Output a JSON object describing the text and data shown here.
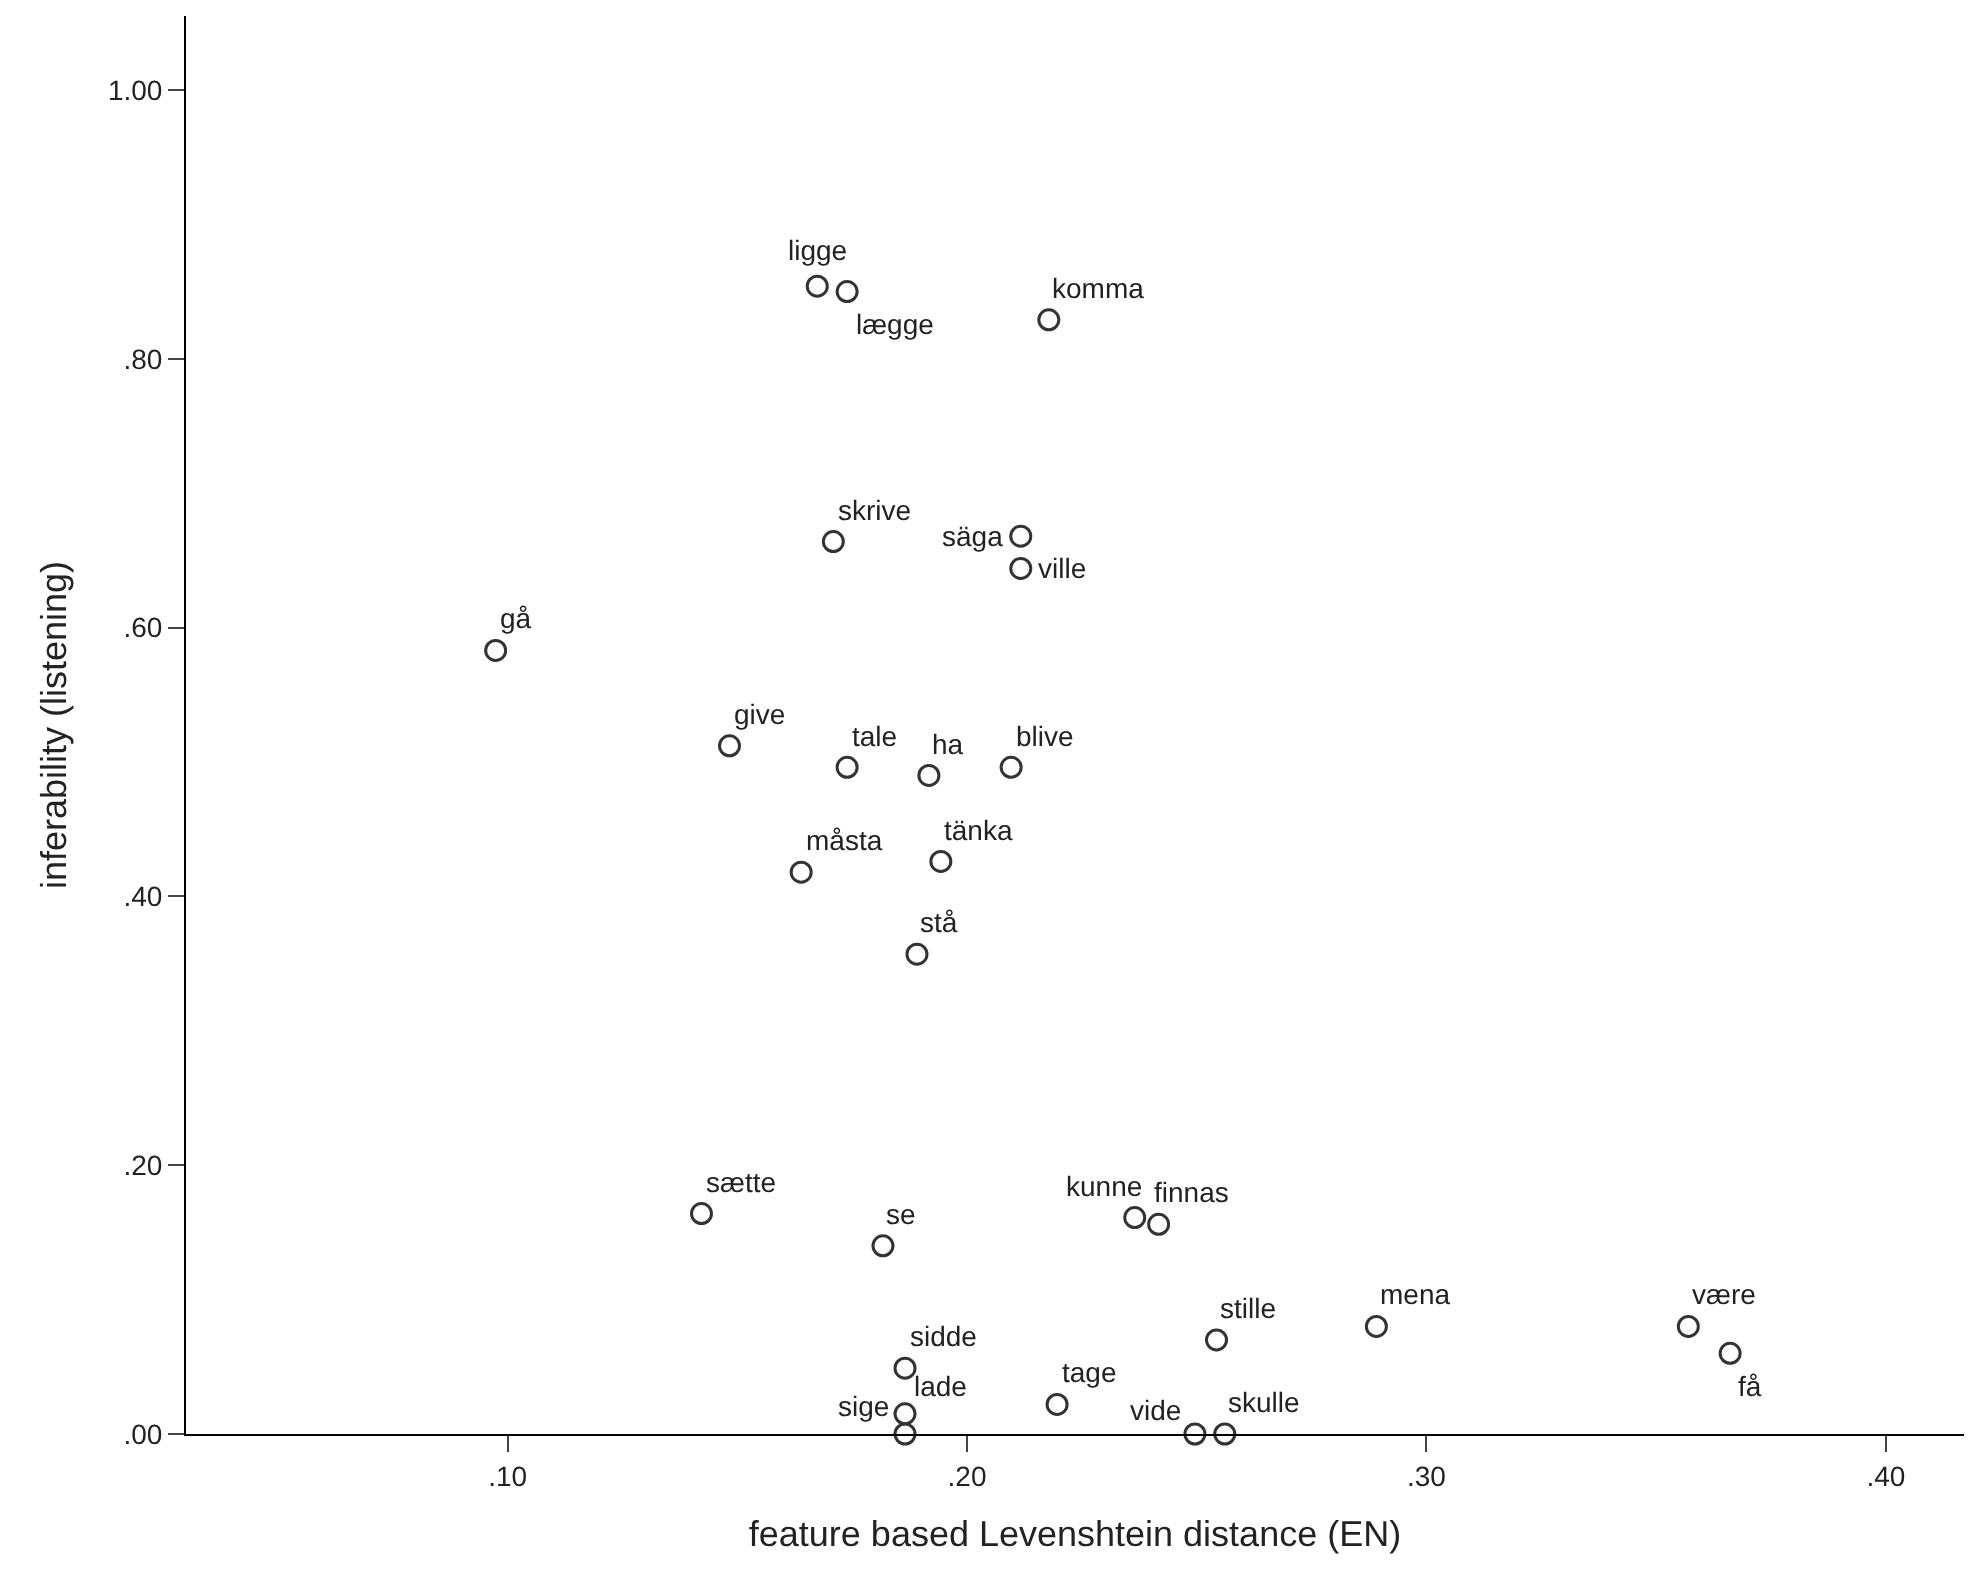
{
  "chart_data": {
    "type": "scatter",
    "xlabel": "feature based Levenshtein distance (EN)",
    "ylabel": "inferability (listening)",
    "x": [
      0.1674,
      0.1739,
      0.2178,
      0.1709,
      0.2117,
      0.2117,
      0.0974,
      0.1483,
      0.1739,
      0.1917,
      0.2096,
      0.1639,
      0.1943,
      0.1891,
      0.1422,
      0.1817,
      0.2365,
      0.2417,
      0.2543,
      0.2891,
      0.357,
      0.3661,
      0.1865,
      0.1865,
      0.1865,
      0.2196,
      0.2496,
      0.2561
    ],
    "series": [
      {
        "color": "#333333",
        "values": [
          0.854,
          0.85,
          0.829,
          0.664,
          0.668,
          0.644,
          0.583,
          0.512,
          0.496,
          0.49,
          0.496,
          0.418,
          0.426,
          0.357,
          0.164,
          0.14,
          0.161,
          0.156,
          0.07,
          0.08,
          0.08,
          0.06,
          0.049,
          0.015,
          0.0,
          0.022,
          0.0,
          0.0
        ]
      }
    ],
    "annotations": [
      {
        "text": "ligge",
        "x": 0.1674,
        "y": 0.854
      },
      {
        "text": "lægge",
        "x": 0.1739,
        "y": 0.85
      },
      {
        "text": "komma",
        "x": 0.2178,
        "y": 0.829
      },
      {
        "text": "skrive",
        "x": 0.1709,
        "y": 0.664
      },
      {
        "text": "säga",
        "x": 0.2117,
        "y": 0.668
      },
      {
        "text": "ville",
        "x": 0.2117,
        "y": 0.644
      },
      {
        "text": "gå",
        "x": 0.0974,
        "y": 0.583
      },
      {
        "text": "give",
        "x": 0.1483,
        "y": 0.512
      },
      {
        "text": "tale",
        "x": 0.1739,
        "y": 0.496
      },
      {
        "text": "ha",
        "x": 0.1917,
        "y": 0.49
      },
      {
        "text": "blive",
        "x": 0.2096,
        "y": 0.496
      },
      {
        "text": "måsta",
        "x": 0.1639,
        "y": 0.418
      },
      {
        "text": "tänka",
        "x": 0.1943,
        "y": 0.426
      },
      {
        "text": "stå",
        "x": 0.1891,
        "y": 0.357
      },
      {
        "text": "sætte",
        "x": 0.1422,
        "y": 0.164
      },
      {
        "text": "se",
        "x": 0.1817,
        "y": 0.14
      },
      {
        "text": "kunne",
        "x": 0.2365,
        "y": 0.161
      },
      {
        "text": "finnas",
        "x": 0.2417,
        "y": 0.156
      },
      {
        "text": "stille",
        "x": 0.2543,
        "y": 0.07
      },
      {
        "text": "mena",
        "x": 0.2891,
        "y": 0.08
      },
      {
        "text": "være",
        "x": 0.357,
        "y": 0.08
      },
      {
        "text": "få",
        "x": 0.3661,
        "y": 0.06
      },
      {
        "text": "sidde",
        "x": 0.1865,
        "y": 0.049
      },
      {
        "text": "sige",
        "x": 0.1865,
        "y": 0.015
      },
      {
        "text": "lade",
        "x": 0.1865,
        "y": 0.0
      },
      {
        "text": "tage",
        "x": 0.2196,
        "y": 0.022
      },
      {
        "text": "vide",
        "x": 0.2496,
        "y": 0.0
      },
      {
        "text": "skulle",
        "x": 0.2561,
        "y": 0.0
      }
    ],
    "xlim": [
      0.03,
      0.417
    ],
    "ylim": [
      0,
      1.055
    ],
    "xticks": [
      {
        "value": 0.1,
        "label": ".10"
      },
      {
        "value": 0.2,
        "label": ".20"
      },
      {
        "value": 0.3,
        "label": ".30"
      },
      {
        "value": 0.4,
        "label": ".40"
      }
    ],
    "yticks": [
      {
        "value": 0,
        "label": ".00"
      },
      {
        "value": 0.2,
        "label": ".20"
      },
      {
        "value": 0.4,
        "label": ".40"
      },
      {
        "value": 0.6,
        "label": ".60"
      },
      {
        "value": 0.8,
        "label": ".80"
      },
      {
        "value": 1.0,
        "label": "1.00"
      }
    ],
    "marker": "circle"
  }
}
